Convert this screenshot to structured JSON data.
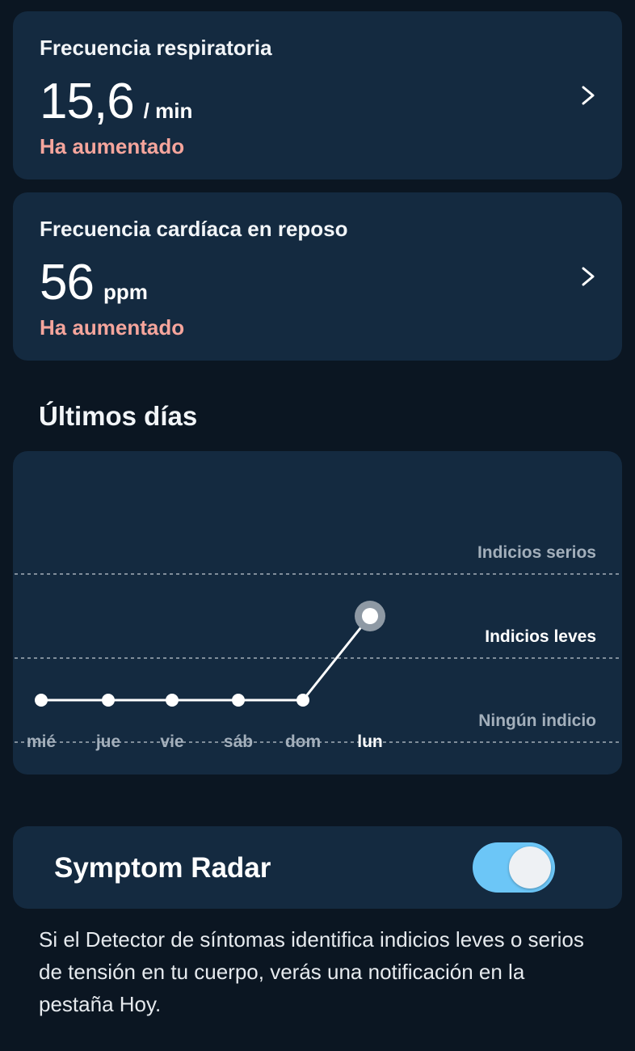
{
  "metrics": [
    {
      "title": "Frecuencia respiratoria",
      "value": "15,6",
      "unit": "/ min",
      "status": "Ha aumentado"
    },
    {
      "title": "Frecuencia cardíaca en reposo",
      "value": "56",
      "unit": "ppm",
      "status": "Ha aumentado"
    }
  ],
  "section_title": "Últimos días",
  "chart_data": {
    "type": "line",
    "levels": [
      "Ningún indicio",
      "Indicios leves",
      "Indicios serios"
    ],
    "categories": [
      "mié",
      "jue",
      "vie",
      "sáb",
      "dom",
      "lun"
    ],
    "values": [
      0.5,
      0.5,
      0.5,
      0.5,
      0.5,
      1.5
    ],
    "highlighted_category": "lun",
    "highlighted_level": "Indicios leves",
    "ylim": [
      0,
      3
    ]
  },
  "symptom_radar": {
    "label": "Symptom Radar",
    "enabled": true,
    "description": "Si el Detector de síntomas identifica indicios leves o serios de tensión en tu cuerpo, verás una notificación en la pestaña Hoy."
  },
  "colors": {
    "status_alert": "#f5a59c",
    "toggle_on": "#6cc6f7",
    "chart_line": "#ffffff",
    "muted_label": "#a3afbb"
  },
  "icons": {
    "chevron": "chevron-right-icon"
  }
}
